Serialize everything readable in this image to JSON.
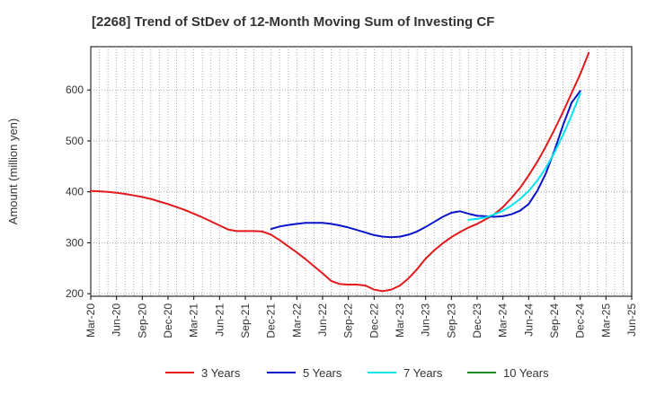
{
  "chart_data": {
    "type": "line",
    "title": "[2268]  Trend of StDev of 12-Month Moving Sum of Investing CF",
    "ylabel": "Amount (million yen)",
    "xlabel": "",
    "ylim": [
      195,
      685
    ],
    "yticks": [
      200,
      300,
      400,
      500,
      600
    ],
    "xtick_labels": [
      "Mar-20",
      "Jun-20",
      "Sep-20",
      "Dec-20",
      "Mar-21",
      "Jun-21",
      "Sep-21",
      "Dec-21",
      "Mar-22",
      "Jun-22",
      "Sep-22",
      "Dec-22",
      "Mar-23",
      "Jun-23",
      "Sep-23",
      "Dec-23",
      "Mar-24",
      "Jun-24",
      "Sep-24",
      "Dec-24",
      "Mar-25",
      "Jun-25"
    ],
    "grid": true,
    "legend_position": "bottom",
    "series": [
      {
        "name": "3 Years",
        "color": "#e31a1c",
        "points": [
          [
            "2020-03",
            402
          ],
          [
            "2020-04",
            401
          ],
          [
            "2020-05",
            400
          ],
          [
            "2020-06",
            398
          ],
          [
            "2020-07",
            396
          ],
          [
            "2020-08",
            393
          ],
          [
            "2020-09",
            390
          ],
          [
            "2020-10",
            386
          ],
          [
            "2020-11",
            381
          ],
          [
            "2020-12",
            376
          ],
          [
            "2021-01",
            370
          ],
          [
            "2021-02",
            364
          ],
          [
            "2021-03",
            357
          ],
          [
            "2021-04",
            350
          ],
          [
            "2021-05",
            342
          ],
          [
            "2021-06",
            334
          ],
          [
            "2021-07",
            326
          ],
          [
            "2021-08",
            323
          ],
          [
            "2021-09",
            323
          ],
          [
            "2021-10",
            323
          ],
          [
            "2021-11",
            322
          ],
          [
            "2021-12",
            316
          ],
          [
            "2022-01",
            305
          ],
          [
            "2022-02",
            293
          ],
          [
            "2022-03",
            281
          ],
          [
            "2022-04",
            268
          ],
          [
            "2022-05",
            254
          ],
          [
            "2022-06",
            240
          ],
          [
            "2022-07",
            225
          ],
          [
            "2022-08",
            219
          ],
          [
            "2022-09",
            218
          ],
          [
            "2022-10",
            218
          ],
          [
            "2022-11",
            216
          ],
          [
            "2022-12",
            208
          ],
          [
            "2023-01",
            205
          ],
          [
            "2023-02",
            208
          ],
          [
            "2023-03",
            216
          ],
          [
            "2023-04",
            230
          ],
          [
            "2023-05",
            248
          ],
          [
            "2023-06",
            269
          ],
          [
            "2023-07",
            285
          ],
          [
            "2023-08",
            299
          ],
          [
            "2023-09",
            311
          ],
          [
            "2023-10",
            321
          ],
          [
            "2023-11",
            330
          ],
          [
            "2023-12",
            337
          ],
          [
            "2024-01",
            346
          ],
          [
            "2024-02",
            356
          ],
          [
            "2024-03",
            370
          ],
          [
            "2024-04",
            388
          ],
          [
            "2024-05",
            408
          ],
          [
            "2024-06",
            432
          ],
          [
            "2024-07",
            459
          ],
          [
            "2024-08",
            489
          ],
          [
            "2024-09",
            522
          ],
          [
            "2024-10",
            557
          ],
          [
            "2024-11",
            594
          ],
          [
            "2024-12",
            631
          ],
          [
            "2025-01",
            673
          ]
        ]
      },
      {
        "name": "5 Years",
        "color": "#0a14c8",
        "points": [
          [
            "2021-12",
            327
          ],
          [
            "2022-01",
            332
          ],
          [
            "2022-02",
            335
          ],
          [
            "2022-03",
            337
          ],
          [
            "2022-04",
            339
          ],
          [
            "2022-05",
            339
          ],
          [
            "2022-06",
            339
          ],
          [
            "2022-07",
            337
          ],
          [
            "2022-08",
            334
          ],
          [
            "2022-09",
            330
          ],
          [
            "2022-10",
            325
          ],
          [
            "2022-11",
            320
          ],
          [
            "2022-12",
            315
          ],
          [
            "2023-01",
            312
          ],
          [
            "2023-02",
            311
          ],
          [
            "2023-03",
            312
          ],
          [
            "2023-04",
            316
          ],
          [
            "2023-05",
            322
          ],
          [
            "2023-06",
            331
          ],
          [
            "2023-07",
            341
          ],
          [
            "2023-08",
            351
          ],
          [
            "2023-09",
            359
          ],
          [
            "2023-10",
            362
          ],
          [
            "2023-11",
            357
          ],
          [
            "2023-12",
            353
          ],
          [
            "2024-01",
            352
          ],
          [
            "2024-02",
            351
          ],
          [
            "2024-03",
            352
          ],
          [
            "2024-04",
            356
          ],
          [
            "2024-05",
            363
          ],
          [
            "2024-06",
            376
          ],
          [
            "2024-07",
            402
          ],
          [
            "2024-08",
            436
          ],
          [
            "2024-09",
            481
          ],
          [
            "2024-10",
            531
          ],
          [
            "2024-11",
            575
          ],
          [
            "2024-12",
            598
          ]
        ]
      },
      {
        "name": "7 Years",
        "color": "#00e5ee",
        "points": [
          [
            "2023-11",
            345
          ],
          [
            "2023-12",
            347
          ],
          [
            "2024-01",
            350
          ],
          [
            "2024-02",
            356
          ],
          [
            "2024-03",
            363
          ],
          [
            "2024-04",
            373
          ],
          [
            "2024-05",
            386
          ],
          [
            "2024-06",
            402
          ],
          [
            "2024-07",
            422
          ],
          [
            "2024-08",
            447
          ],
          [
            "2024-09",
            477
          ],
          [
            "2024-10",
            512
          ],
          [
            "2024-11",
            550
          ],
          [
            "2024-12",
            593
          ]
        ]
      },
      {
        "name": "10 Years",
        "color": "#228b22",
        "points": []
      }
    ]
  }
}
